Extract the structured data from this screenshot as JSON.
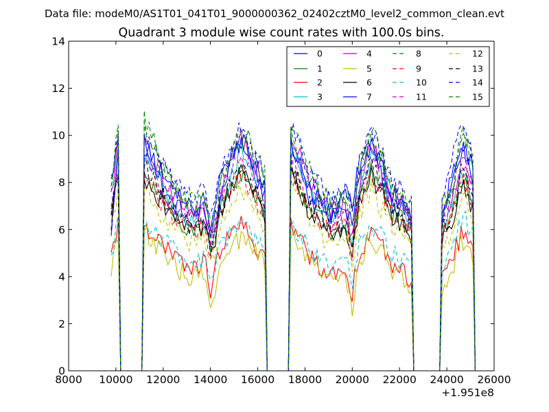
{
  "figure": {
    "suptitle": "Data file: modeM0/AS1T01_041T01_9000000362_02402cztM0_level2_common_clean.evt",
    "x_offset_label": "+1.951e8"
  },
  "chart_data": {
    "type": "line",
    "title": "Quadrant 3 module wise count rates with 100.0s bins.",
    "xlabel": "",
    "ylabel": "",
    "xlim": [
      8000,
      26000
    ],
    "ylim": [
      0,
      14
    ],
    "x_ticks": [
      8000,
      10000,
      12000,
      14000,
      16000,
      18000,
      20000,
      22000,
      24000,
      26000
    ],
    "x_tick_labels": [
      "8000",
      "10000",
      "12000",
      "14000",
      "16000",
      "18000",
      "20000",
      "22000",
      "24000",
      "26000"
    ],
    "y_ticks": [
      0,
      2,
      4,
      6,
      8,
      10,
      12,
      14
    ],
    "y_tick_labels": [
      "0",
      "2",
      "4",
      "6",
      "8",
      "10",
      "12",
      "14"
    ],
    "grid": false,
    "legend_position": "top-right",
    "x_step": 100,
    "segments": [
      {
        "x_start": 9800,
        "x_end": 10100
      },
      {
        "x_start": 11200,
        "x_end": 16300
      },
      {
        "x_start": 17400,
        "x_end": 22500
      },
      {
        "x_start": 23800,
        "x_end": 25100
      }
    ],
    "series": [
      {
        "name": "0",
        "color": "#0000ff",
        "dash": "solid",
        "levels": [
          8.1,
          9.8,
          7.2,
          6.5,
          8.0,
          9.9,
          7.3,
          6.6,
          8.0,
          9.7,
          7.2,
          6.5,
          8.1,
          9.5,
          8.6
        ]
      },
      {
        "name": "1",
        "color": "#008000",
        "dash": "solid",
        "levels": [
          6.6,
          8.4,
          6.7,
          6.0,
          6.4,
          8.5,
          6.8,
          6.0,
          6.3,
          8.5,
          6.8,
          6.1,
          6.6,
          8.2,
          7.3
        ]
      },
      {
        "name": "2",
        "color": "#ff0000",
        "dash": "solid",
        "levels": [
          4.7,
          6.3,
          5.0,
          4.3,
          5.0,
          6.2,
          4.8,
          4.1,
          4.5,
          5.9,
          4.6,
          3.9,
          4.8,
          5.9,
          5.2
        ]
      },
      {
        "name": "3",
        "color": "#00bfbf",
        "dash": "solid",
        "levels": [
          7.0,
          9.3,
          7.4,
          6.2,
          6.6,
          9.4,
          7.7,
          6.4,
          6.5,
          9.3,
          7.5,
          6.3,
          7.0,
          8.6,
          7.5
        ]
      },
      {
        "name": "4",
        "color": "#bf00bf",
        "dash": "solid",
        "levels": [
          7.2,
          9.7,
          7.8,
          6.7,
          7.0,
          10.0,
          8.0,
          6.8,
          6.8,
          9.6,
          7.7,
          6.6,
          7.2,
          9.0,
          7.8
        ]
      },
      {
        "name": "5",
        "color": "#bfbf00",
        "dash": "solid",
        "levels": [
          4.4,
          5.9,
          4.6,
          3.9,
          4.1,
          5.7,
          4.5,
          3.8,
          4.0,
          5.7,
          4.3,
          3.6,
          4.3,
          5.6,
          4.8
        ]
      },
      {
        "name": "6",
        "color": "#000000",
        "dash": "solid",
        "levels": [
          6.3,
          8.3,
          6.8,
          5.8,
          6.4,
          8.6,
          6.6,
          5.8,
          6.2,
          8.2,
          6.6,
          5.7,
          6.1,
          7.8,
          6.9
        ]
      },
      {
        "name": "7",
        "color": "#0000ff",
        "dash": "solid",
        "levels": [
          6.0,
          9.6,
          7.9,
          6.9,
          7.2,
          9.8,
          7.7,
          6.5,
          7.3,
          9.6,
          7.6,
          6.5,
          8.4,
          9.5,
          8.1
        ]
      },
      {
        "name": "8",
        "color": "#008000",
        "dash": "dashed",
        "levels": [
          7.8,
          10.3,
          8.2,
          7.0,
          7.6,
          10.0,
          8.0,
          6.8,
          7.8,
          9.9,
          7.9,
          6.8,
          7.8,
          10.2,
          8.8
        ]
      },
      {
        "name": "9",
        "color": "#ff0000",
        "dash": "dashed",
        "levels": [
          6.8,
          8.3,
          6.7,
          5.8,
          6.4,
          8.4,
          6.7,
          5.8,
          6.2,
          8.3,
          6.7,
          5.8,
          6.9,
          8.3,
          7.1
        ]
      },
      {
        "name": "10",
        "color": "#00bfbf",
        "dash": "dashed",
        "levels": [
          5.0,
          6.4,
          5.3,
          4.5,
          5.1,
          6.3,
          5.1,
          4.3,
          4.8,
          6.3,
          5.0,
          4.3,
          5.3,
          6.6,
          5.7
        ]
      },
      {
        "name": "11",
        "color": "#bf00bf",
        "dash": "dashed",
        "levels": [
          7.0,
          9.1,
          7.3,
          6.3,
          7.0,
          9.2,
          7.4,
          6.3,
          6.9,
          9.0,
          7.3,
          6.2,
          7.2,
          9.1,
          7.6
        ]
      },
      {
        "name": "12",
        "color": "#bfbf00",
        "dash": "dashed",
        "levels": [
          6.1,
          7.6,
          6.2,
          5.3,
          6.0,
          7.8,
          6.2,
          5.3,
          5.9,
          7.7,
          6.1,
          5.3,
          5.9,
          7.6,
          6.6
        ]
      },
      {
        "name": "13",
        "color": "#000000",
        "dash": "dashed",
        "levels": [
          6.5,
          8.7,
          7.0,
          6.1,
          6.6,
          8.7,
          7.0,
          6.1,
          6.6,
          8.9,
          7.0,
          6.0,
          6.6,
          8.7,
          7.3
        ]
      },
      {
        "name": "14",
        "color": "#0000ff",
        "dash": "dashed",
        "levels": [
          8.0,
          10.2,
          8.4,
          7.3,
          8.0,
          10.4,
          8.3,
          7.2,
          7.9,
          10.3,
          8.2,
          7.2,
          9.0,
          10.6,
          8.9
        ]
      },
      {
        "name": "15",
        "color": "#008000",
        "dash": "dashed",
        "levels": [
          7.6,
          10.6,
          8.3,
          7.1,
          7.3,
          10.5,
          8.4,
          7.1,
          7.1,
          10.2,
          8.1,
          7.0,
          7.6,
          10.4,
          8.6
        ]
      }
    ]
  }
}
